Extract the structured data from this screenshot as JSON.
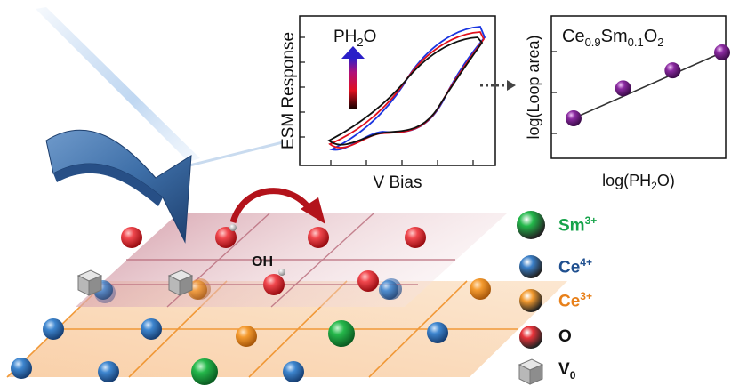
{
  "esm_panel": {
    "y_label": "ESM Response",
    "x_label": "V Bias",
    "arrow_label": "PH",
    "arrow_label_sub": "2",
    "arrow_label_end": "O"
  },
  "loop_panel": {
    "y_label": "log(Loop area)",
    "x_label_main": "log(PH",
    "x_label_sub": "2",
    "x_label_end": "O)",
    "formula_base1": "Ce",
    "formula_sub1": "0.9",
    "formula_base2": "Sm",
    "formula_sub2": "0.1",
    "formula_base3": "O",
    "formula_sub3": "2",
    "chart_data": {
      "type": "scatter",
      "x": [
        1,
        2,
        3,
        4
      ],
      "y": [
        1,
        2,
        2.6,
        3.2
      ],
      "trendline": true
    }
  },
  "lattice": {
    "oh_label": "OH"
  },
  "legend": [
    {
      "label": "Sm",
      "sup": "3+",
      "color": "#22b84a",
      "text_color": "#16a34a"
    },
    {
      "label": "Ce",
      "sup": "4+",
      "color": "#3a7fc8",
      "text_color": "#1f4f8f"
    },
    {
      "label": "Ce",
      "sup": "3+",
      "color": "#f39a2e",
      "text_color": "#e8801a"
    },
    {
      "label": "O",
      "sup": "",
      "color": "#e8333a",
      "text_color": "#111111"
    },
    {
      "label": "V",
      "sub": "0",
      "color": "#9a9a9a",
      "text_color": "#111111"
    }
  ],
  "colors": {
    "arrow_red": "#c0141c",
    "sheet_orange": "#f5b370",
    "sheet_pink": "#c98594",
    "cantilever": "#3e6fa8",
    "loop_point": "#7a1f8c"
  }
}
